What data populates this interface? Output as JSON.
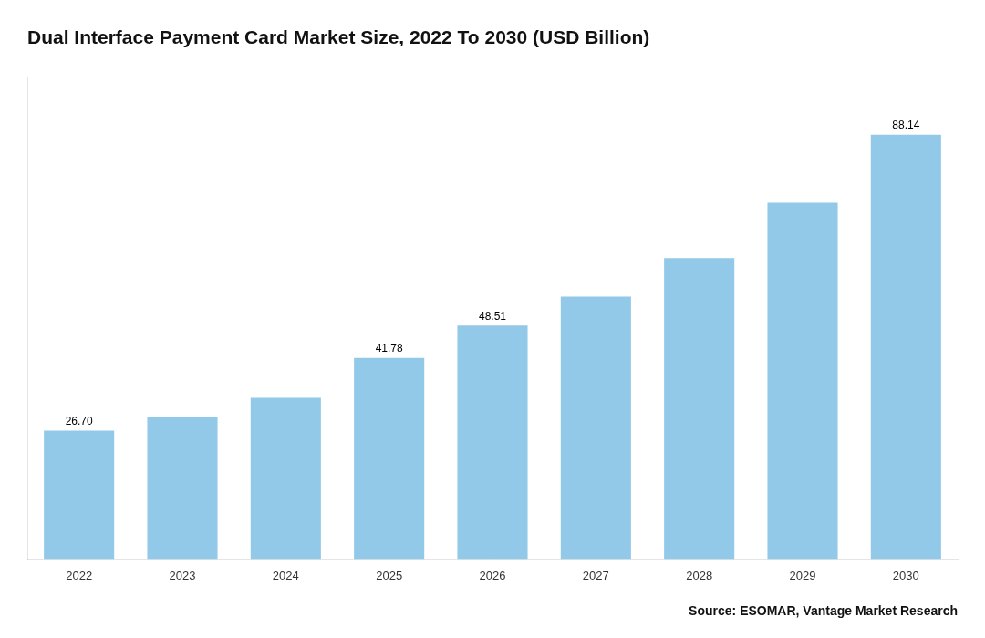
{
  "chart_data": {
    "type": "bar",
    "title": "Dual Interface Payment Card Market Size, 2022 To 2030 (USD Billion)",
    "annotation": "Source: ESOMAR, Vantage Market Research",
    "categories": [
      "2022",
      "2023",
      "2024",
      "2025",
      "2026",
      "2027",
      "2028",
      "2029",
      "2030"
    ],
    "values": [
      26.7,
      29.5,
      33.5,
      41.78,
      48.51,
      54.5,
      62.5,
      74.0,
      88.14
    ],
    "value_labels": [
      "26.70",
      null,
      null,
      "41.78",
      "48.51",
      null,
      null,
      null,
      "88.14"
    ],
    "color": "#92C8E8",
    "ylim": [
      0,
      100
    ],
    "grid": false,
    "tick_labels": "x"
  }
}
